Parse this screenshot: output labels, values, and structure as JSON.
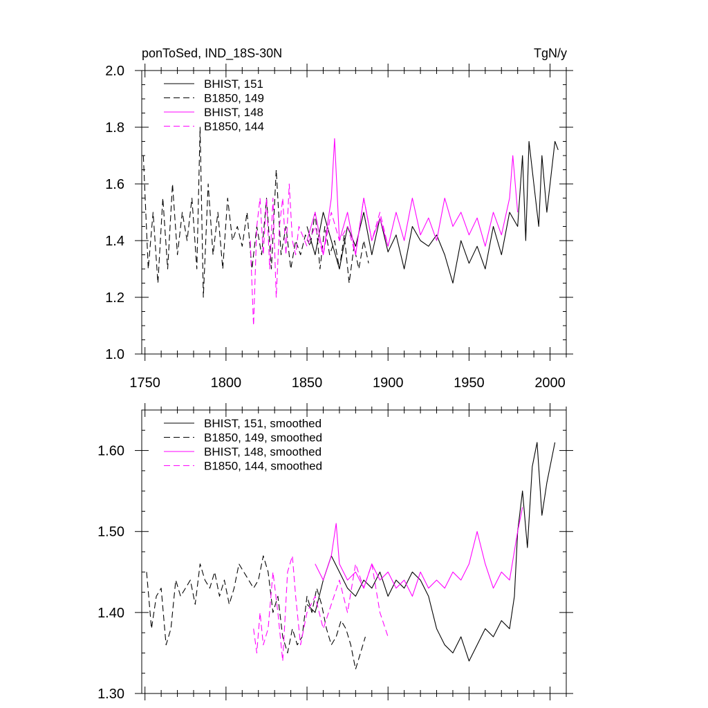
{
  "chart_data": [
    {
      "type": "line",
      "title_left": "ponToSed, IND_18S-30N",
      "title_right": "TgN/y",
      "xlim": [
        1748,
        2010
      ],
      "ylim": [
        1.0,
        2.0
      ],
      "x_ticks": [
        1750,
        1800,
        1850,
        1900,
        1950,
        2000
      ],
      "y_ticks": [
        1.0,
        1.2,
        1.4,
        1.6,
        1.8,
        2.0
      ],
      "y_tick_labels": [
        "1.0",
        "1.2",
        "1.4",
        "1.6",
        "1.8",
        "2.0"
      ],
      "grid": false,
      "legend_placement": "top-left",
      "series": [
        {
          "name": "BHIST, 151",
          "color": "#000000",
          "dash": "solid",
          "x": [
            1850,
            1855,
            1860,
            1865,
            1870,
            1875,
            1880,
            1885,
            1890,
            1895,
            1900,
            1905,
            1910,
            1915,
            1920,
            1925,
            1930,
            1935,
            1940,
            1945,
            1950,
            1955,
            1960,
            1965,
            1970,
            1975,
            1980,
            1983,
            1985,
            1987,
            1990,
            1993,
            1995,
            1998,
            2000,
            2003,
            2005
          ],
          "y": [
            1.45,
            1.35,
            1.5,
            1.4,
            1.3,
            1.45,
            1.38,
            1.5,
            1.35,
            1.48,
            1.36,
            1.42,
            1.3,
            1.45,
            1.4,
            1.38,
            1.42,
            1.35,
            1.25,
            1.4,
            1.32,
            1.38,
            1.3,
            1.45,
            1.35,
            1.5,
            1.45,
            1.7,
            1.4,
            1.75,
            1.6,
            1.45,
            1.7,
            1.5,
            1.6,
            1.75,
            1.72
          ]
        },
        {
          "name": "B1850, 149",
          "color": "#000000",
          "dash": "dashed",
          "x": [
            1749,
            1752,
            1755,
            1758,
            1761,
            1764,
            1767,
            1770,
            1773,
            1776,
            1779,
            1782,
            1784,
            1786,
            1789,
            1792,
            1795,
            1798,
            1801,
            1804,
            1807,
            1810,
            1813,
            1816,
            1819,
            1822,
            1825,
            1828,
            1831,
            1834,
            1837,
            1840,
            1843,
            1846,
            1849,
            1852,
            1855,
            1858,
            1861,
            1864,
            1867,
            1870,
            1873,
            1876,
            1879,
            1882,
            1885,
            1888
          ],
          "y": [
            1.7,
            1.3,
            1.5,
            1.25,
            1.55,
            1.3,
            1.6,
            1.35,
            1.5,
            1.4,
            1.55,
            1.3,
            1.8,
            1.2,
            1.6,
            1.35,
            1.5,
            1.3,
            1.55,
            1.4,
            1.45,
            1.38,
            1.5,
            1.3,
            1.45,
            1.35,
            1.55,
            1.3,
            1.65,
            1.35,
            1.45,
            1.3,
            1.4,
            1.35,
            1.42,
            1.38,
            1.5,
            1.3,
            1.45,
            1.35,
            1.4,
            1.3,
            1.42,
            1.25,
            1.38,
            1.3,
            1.4,
            1.32
          ]
        },
        {
          "name": "BHIST, 148",
          "color": "#ff00ff",
          "dash": "solid",
          "x": [
            1850,
            1855,
            1860,
            1865,
            1867,
            1870,
            1875,
            1880,
            1885,
            1890,
            1895,
            1900,
            1905,
            1910,
            1915,
            1920,
            1925,
            1930,
            1935,
            1940,
            1945,
            1950,
            1955,
            1960,
            1965,
            1970,
            1975,
            1977,
            1980
          ],
          "y": [
            1.4,
            1.5,
            1.35,
            1.55,
            1.76,
            1.4,
            1.5,
            1.35,
            1.55,
            1.4,
            1.48,
            1.38,
            1.5,
            1.4,
            1.55,
            1.42,
            1.48,
            1.4,
            1.55,
            1.45,
            1.5,
            1.42,
            1.48,
            1.38,
            1.5,
            1.42,
            1.55,
            1.7,
            1.5
          ]
        },
        {
          "name": "B1850, 144",
          "color": "#ff00ff",
          "dash": "dashed",
          "x": [
            1815,
            1817,
            1819,
            1821,
            1823,
            1825,
            1827,
            1829,
            1831,
            1833,
            1835,
            1837,
            1839,
            1841,
            1843,
            1845,
            1850,
            1855,
            1860,
            1865,
            1870,
            1875,
            1880,
            1885,
            1890,
            1895,
            1900
          ],
          "y": [
            1.4,
            1.1,
            1.45,
            1.55,
            1.35,
            1.55,
            1.3,
            1.55,
            1.2,
            1.45,
            1.55,
            1.35,
            1.6,
            1.4,
            1.35,
            1.45,
            1.38,
            1.45,
            1.35,
            1.5,
            1.4,
            1.45,
            1.35,
            1.55,
            1.4,
            1.5,
            1.38
          ]
        }
      ]
    },
    {
      "type": "line",
      "xlim": [
        1748,
        2010
      ],
      "ylim": [
        1.3,
        1.65
      ],
      "y_ticks": [
        1.3,
        1.4,
        1.5,
        1.6
      ],
      "y_tick_labels": [
        "1.30",
        "1.40",
        "1.50",
        "1.60"
      ],
      "grid": false,
      "legend_placement": "top-left",
      "series": [
        {
          "name": "BHIST, 151, smoothed",
          "color": "#000000",
          "dash": "solid",
          "x": [
            1850,
            1855,
            1860,
            1865,
            1870,
            1875,
            1880,
            1885,
            1890,
            1895,
            1900,
            1905,
            1910,
            1915,
            1920,
            1925,
            1930,
            1935,
            1940,
            1945,
            1950,
            1955,
            1960,
            1965,
            1970,
            1975,
            1978,
            1980,
            1983,
            1986,
            1989,
            1992,
            1995,
            1998,
            2001,
            2003
          ],
          "y": [
            1.41,
            1.4,
            1.44,
            1.47,
            1.45,
            1.43,
            1.42,
            1.44,
            1.43,
            1.45,
            1.42,
            1.44,
            1.43,
            1.45,
            1.44,
            1.42,
            1.38,
            1.36,
            1.35,
            1.37,
            1.34,
            1.36,
            1.38,
            1.37,
            1.39,
            1.38,
            1.42,
            1.5,
            1.55,
            1.48,
            1.58,
            1.61,
            1.52,
            1.56,
            1.59,
            1.61
          ]
        },
        {
          "name": "B1850, 149, smoothed",
          "color": "#000000",
          "dash": "dashed",
          "x": [
            1751,
            1754,
            1757,
            1760,
            1763,
            1766,
            1769,
            1772,
            1775,
            1778,
            1781,
            1784,
            1787,
            1790,
            1793,
            1796,
            1799,
            1802,
            1805,
            1808,
            1811,
            1814,
            1817,
            1820,
            1823,
            1826,
            1829,
            1832,
            1835,
            1838,
            1841,
            1844,
            1847,
            1850,
            1853,
            1856,
            1859,
            1862,
            1865,
            1868,
            1871,
            1874,
            1877,
            1880,
            1883,
            1886
          ],
          "y": [
            1.45,
            1.38,
            1.42,
            1.43,
            1.36,
            1.38,
            1.44,
            1.42,
            1.43,
            1.44,
            1.41,
            1.46,
            1.44,
            1.43,
            1.45,
            1.42,
            1.44,
            1.41,
            1.43,
            1.46,
            1.45,
            1.44,
            1.43,
            1.44,
            1.47,
            1.45,
            1.4,
            1.42,
            1.37,
            1.35,
            1.38,
            1.36,
            1.37,
            1.42,
            1.4,
            1.43,
            1.41,
            1.38,
            1.36,
            1.37,
            1.39,
            1.38,
            1.36,
            1.33,
            1.35,
            1.37
          ]
        },
        {
          "name": "BHIST, 148, smoothed",
          "color": "#ff00ff",
          "dash": "solid",
          "x": [
            1855,
            1860,
            1865,
            1868,
            1870,
            1875,
            1880,
            1885,
            1890,
            1895,
            1900,
            1905,
            1910,
            1915,
            1920,
            1925,
            1930,
            1935,
            1940,
            1945,
            1950,
            1955,
            1960,
            1965,
            1970,
            1975,
            1980,
            1983
          ],
          "y": [
            1.46,
            1.44,
            1.47,
            1.51,
            1.46,
            1.44,
            1.45,
            1.43,
            1.46,
            1.44,
            1.45,
            1.43,
            1.44,
            1.42,
            1.45,
            1.43,
            1.44,
            1.43,
            1.45,
            1.44,
            1.46,
            1.5,
            1.46,
            1.43,
            1.45,
            1.44,
            1.5,
            1.53
          ]
        },
        {
          "name": "B1850, 144, smoothed",
          "color": "#ff00ff",
          "dash": "dashed",
          "x": [
            1817,
            1819,
            1821,
            1823,
            1826,
            1829,
            1832,
            1835,
            1838,
            1841,
            1843,
            1846,
            1850,
            1855,
            1860,
            1865,
            1870,
            1875,
            1880,
            1885,
            1890,
            1895,
            1900
          ],
          "y": [
            1.38,
            1.35,
            1.4,
            1.36,
            1.38,
            1.45,
            1.4,
            1.34,
            1.45,
            1.47,
            1.42,
            1.36,
            1.4,
            1.42,
            1.38,
            1.41,
            1.44,
            1.4,
            1.46,
            1.43,
            1.46,
            1.4,
            1.37
          ]
        }
      ]
    }
  ]
}
